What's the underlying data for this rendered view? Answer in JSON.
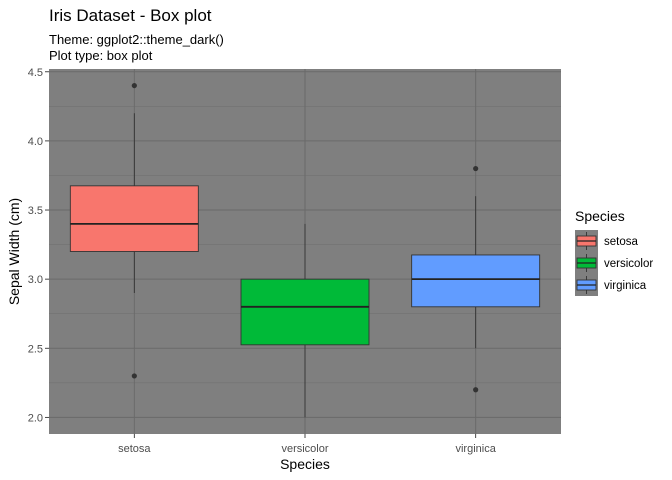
{
  "chart_data": {
    "type": "box",
    "title": "Iris Dataset - Box plot",
    "subtitle_lines": [
      "Theme: ggplot2::theme_dark()",
      "Plot type: box plot"
    ],
    "xlabel": "Species",
    "ylabel": "Sepal Width (cm)",
    "ylim": [
      1.88,
      4.52
    ],
    "yticks": [
      2.0,
      2.5,
      3.0,
      3.5,
      4.0,
      4.5
    ],
    "ytick_labels": [
      "2.0",
      "2.5",
      "3.0",
      "3.5",
      "4.0",
      "4.5"
    ],
    "categories": [
      "setosa",
      "versicolor",
      "virginica"
    ],
    "grid": true,
    "legend_position": "right",
    "legend_title": "Species",
    "panel_background": "#7f7f7f",
    "series": [
      {
        "name": "setosa",
        "color": "#F8766D",
        "min": 2.9,
        "q1": 3.2,
        "median": 3.4,
        "q3": 3.675,
        "max": 4.2,
        "outliers": [
          4.4,
          2.3
        ]
      },
      {
        "name": "versicolor",
        "color": "#00BA38",
        "min": 2.0,
        "q1": 2.525,
        "median": 2.8,
        "q3": 3.0,
        "max": 3.4,
        "outliers": []
      },
      {
        "name": "virginica",
        "color": "#619CFF",
        "min": 2.5,
        "q1": 2.8,
        "median": 3.0,
        "q3": 3.175,
        "max": 3.6,
        "outliers": [
          3.8,
          2.2
        ]
      }
    ]
  }
}
